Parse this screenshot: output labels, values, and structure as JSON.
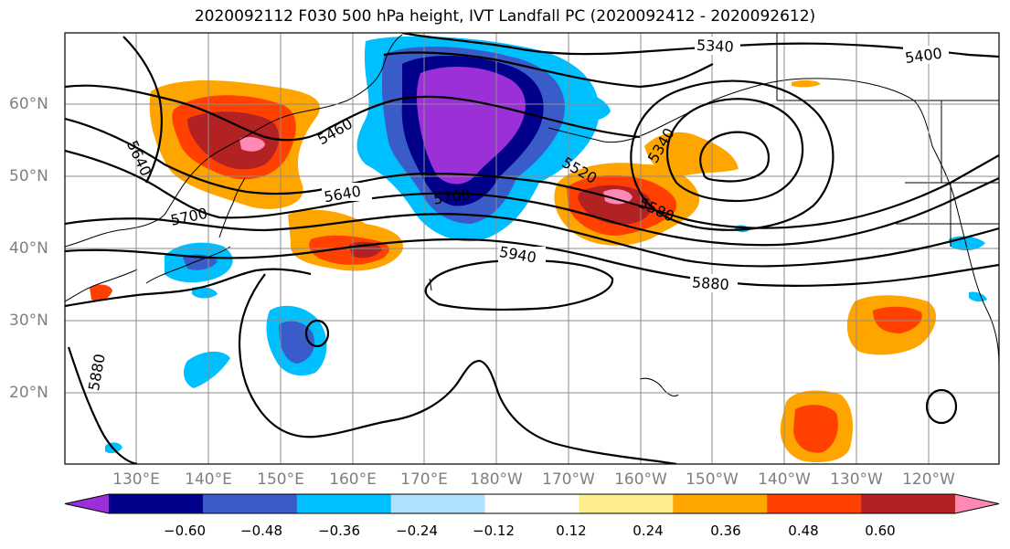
{
  "title": "2020092112 F030 500 hPa height, IVT Landfall PC (2020092412 - 2020092612)",
  "map": {
    "lat_ticks": [
      "60°N",
      "50°N",
      "40°N",
      "30°N",
      "20°N"
    ],
    "lon_ticks": [
      "130°E",
      "140°E",
      "150°E",
      "160°E",
      "170°E",
      "180°W",
      "170°W",
      "160°W",
      "150°W",
      "140°W",
      "130°W",
      "120°W"
    ],
    "contour_labels": [
      "5340",
      "5400",
      "5460",
      "5340",
      "5640",
      "5640",
      "5700",
      "5700",
      "5520",
      "5580",
      "5940",
      "5880",
      "5880"
    ]
  },
  "colorbar": {
    "colors": [
      "#9b30d9",
      "#00008b",
      "#3a5cc9",
      "#00bfff",
      "#b0e2ff",
      "#ffffff",
      "#ffec8b",
      "#ffa500",
      "#ff4000",
      "#b22222",
      "#ff88b4"
    ],
    "tick_labels": [
      "−0.60",
      "−0.48",
      "−0.36",
      "−0.24",
      "−0.12",
      "0.12",
      "0.24",
      "0.36",
      "0.48",
      "0.60"
    ]
  }
}
